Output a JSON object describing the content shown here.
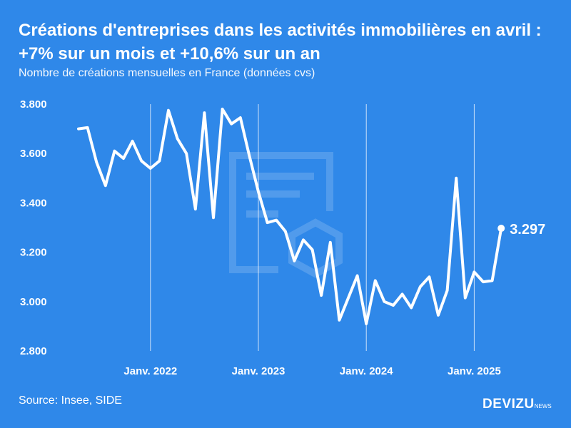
{
  "header": {
    "title_line1": "Créations d'entreprises dans les activités immobilières en avril :",
    "title_line2": "+7% sur un mois et +10,6% sur un an",
    "subtitle": "Nombre de créations mensuelles en France (données cvs)"
  },
  "footer": {
    "source": "Source: Insee, SIDE",
    "brand": "DEVIZU",
    "brand_suffix": "NEWS"
  },
  "colors": {
    "background": "#2f88e9",
    "line": "#ffffff",
    "grid": "#ffffff"
  },
  "chart_data": {
    "type": "line",
    "title": "Créations d'entreprises dans les activités immobilières en avril : +7% sur un mois et +10,6% sur un an",
    "subtitle": "Nombre de créations mensuelles en France (données cvs)",
    "x": [
      "2021-05",
      "2021-06",
      "2021-07",
      "2021-08",
      "2021-09",
      "2021-10",
      "2021-11",
      "2021-12",
      "2022-01",
      "2022-02",
      "2022-03",
      "2022-04",
      "2022-05",
      "2022-06",
      "2022-07",
      "2022-08",
      "2022-09",
      "2022-10",
      "2022-11",
      "2022-12",
      "2023-01",
      "2023-02",
      "2023-03",
      "2023-04",
      "2023-05",
      "2023-06",
      "2023-07",
      "2023-08",
      "2023-09",
      "2023-10",
      "2023-11",
      "2023-12",
      "2024-01",
      "2024-02",
      "2024-03",
      "2024-04",
      "2024-05",
      "2024-06",
      "2024-07",
      "2024-08",
      "2024-09",
      "2024-10",
      "2024-11",
      "2024-12",
      "2025-01",
      "2025-02",
      "2025-03",
      "2025-04"
    ],
    "series": [
      {
        "values": [
          3700,
          3705,
          3565,
          3470,
          3610,
          3580,
          3650,
          3570,
          3540,
          3570,
          3775,
          3660,
          3600,
          3375,
          3765,
          3340,
          3780,
          3720,
          3745,
          3590,
          3445,
          3320,
          3330,
          3285,
          3165,
          3250,
          3210,
          3025,
          3240,
          2925,
          3015,
          3105,
          2910,
          3085,
          3000,
          2985,
          3030,
          2975,
          3060,
          3100,
          2945,
          3045,
          3500,
          3015,
          3120,
          3080,
          3085,
          3297
        ]
      }
    ],
    "xticks": [
      {
        "x": "2022-01",
        "label": "Janv. 2022"
      },
      {
        "x": "2023-01",
        "label": "Janv. 2023"
      },
      {
        "x": "2024-01",
        "label": "Janv. 2024"
      },
      {
        "x": "2025-01",
        "label": "Janv. 2025"
      }
    ],
    "yticks": [
      {
        "value": 2800,
        "label": "2.800"
      },
      {
        "value": 3000,
        "label": "3.000"
      },
      {
        "value": 3200,
        "label": "3.200"
      },
      {
        "value": 3400,
        "label": "3.400"
      },
      {
        "value": 3600,
        "label": "3.600"
      },
      {
        "value": 3800,
        "label": "3.800"
      }
    ],
    "ylim": [
      2800,
      3800
    ],
    "vertical_gridlines_at_xticks": true,
    "last_value_label": "3.297"
  }
}
